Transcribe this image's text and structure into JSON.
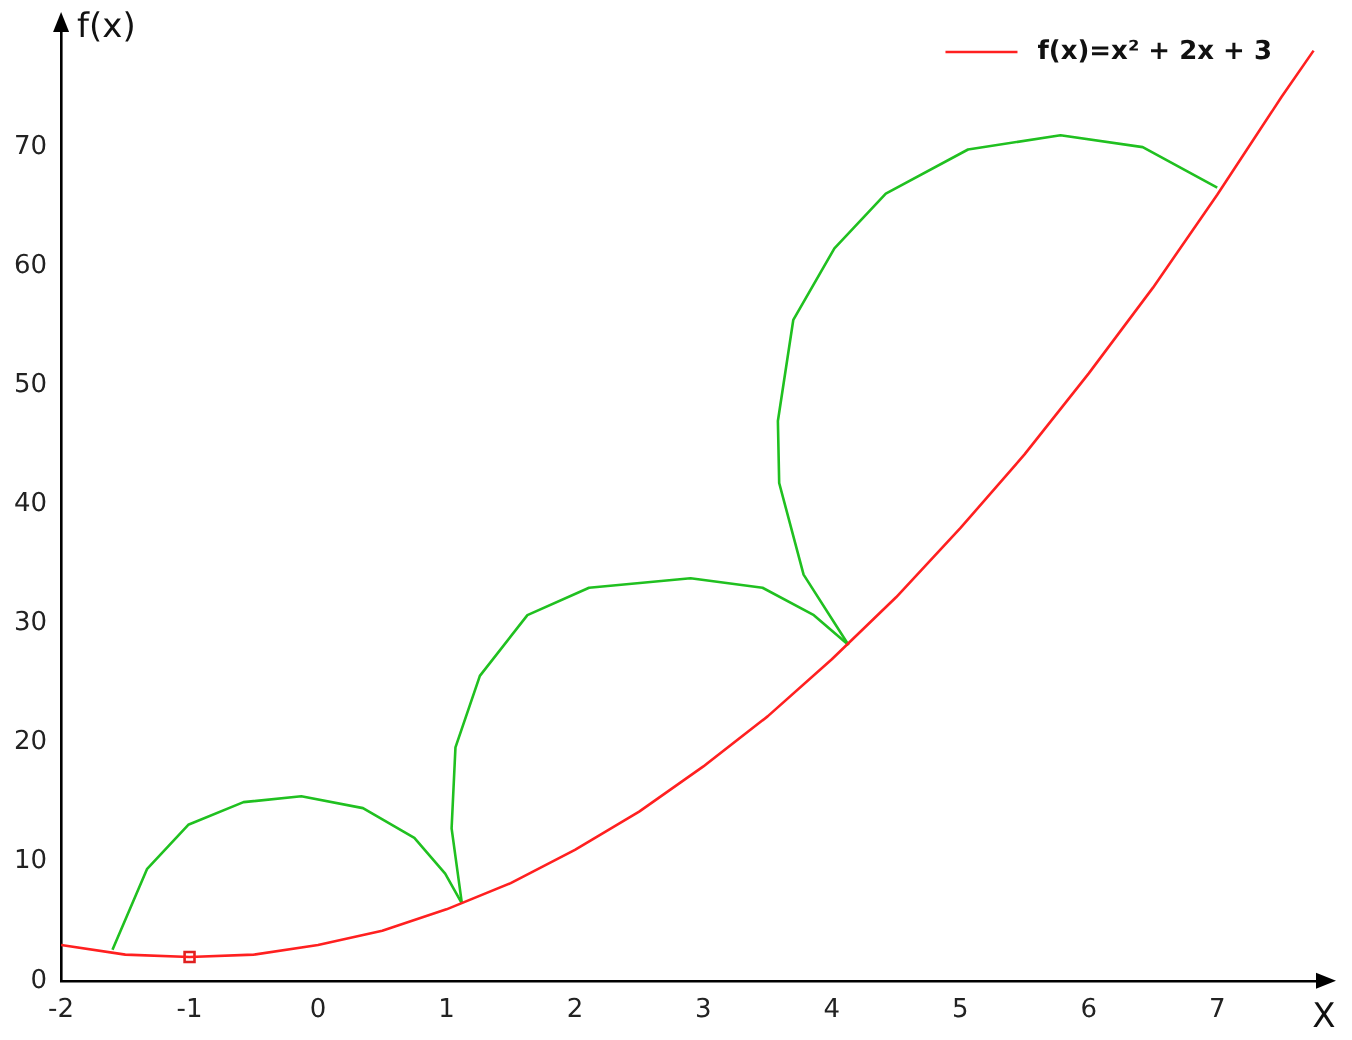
{
  "chart_data": {
    "type": "line",
    "xlabel": "X",
    "ylabel": "f(x)",
    "xlim": [
      -2,
      7.8
    ],
    "ylim": [
      0,
      80
    ],
    "xticks": [
      -2,
      -1,
      0,
      1,
      2,
      3,
      4,
      5,
      6,
      7
    ],
    "yticks": [
      0,
      10,
      20,
      30,
      40,
      50,
      60,
      70
    ],
    "grid": false,
    "legend": "top right",
    "line_style": "solid",
    "marker": "none",
    "series": [
      {
        "name": "f(x)=x² + 2x + 3",
        "color": "#ff2020",
        "x": [
          -2,
          -1.5,
          -1,
          -0.5,
          0,
          0.5,
          1,
          1.5,
          2,
          2.5,
          3,
          3.5,
          4,
          4.5,
          5,
          5.5,
          6,
          6.5,
          7,
          7.5,
          7.75
        ],
        "values": [
          3,
          2.2,
          2,
          2.2,
          3,
          4.2,
          6,
          8.2,
          11,
          14.2,
          18,
          22.2,
          27,
          32.2,
          38,
          44.2,
          51,
          58.2,
          66,
          74.2,
          78.1
        ]
      },
      {
        "color": "#20c020",
        "x": [
          -1.6,
          -1.33,
          -1.01,
          -0.58,
          -0.13,
          0.35,
          0.75,
          0.99,
          1.12
        ],
        "values": [
          2.6,
          9.4,
          13.1,
          15,
          15.5,
          14.5,
          12,
          9,
          6.5
        ]
      },
      {
        "color": "#20c020",
        "x": [
          1.12,
          1.04,
          1.07,
          1.26,
          1.63,
          2.11,
          2.9,
          3.46,
          3.86,
          4.13
        ],
        "values": [
          6.5,
          12.8,
          19.6,
          25.6,
          30.7,
          33,
          33.8,
          33,
          30.7,
          28.2
        ]
      },
      {
        "color": "#20c020",
        "x": [
          4.13,
          3.78,
          3.59,
          3.58,
          3.7,
          4.02,
          4.42,
          5.06,
          5.78,
          6.42,
          7
        ],
        "values": [
          28.2,
          34.1,
          41.8,
          47,
          55.5,
          61.5,
          66.1,
          69.8,
          71,
          70,
          66.6
        ]
      },
      {
        "color": "#e02020",
        "type": "scatter",
        "marker": "square",
        "x": [
          -1
        ],
        "values": [
          2
        ]
      }
    ]
  }
}
